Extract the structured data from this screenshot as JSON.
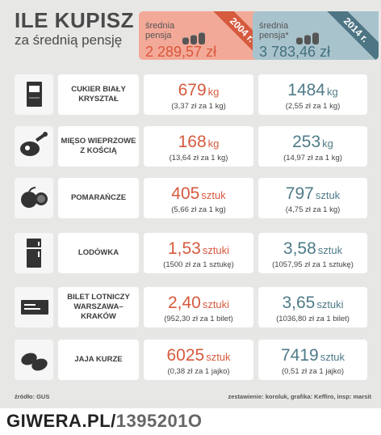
{
  "title": {
    "main": "ILE KUPISZ",
    "sub": "za średnią pensję"
  },
  "colors": {
    "accent_2004": "#d65a3e",
    "accent_2014": "#4f7b89",
    "header_2004": "#f3a998",
    "header_2014": "#a9c3cc"
  },
  "headers": {
    "y2004": {
      "label_line1": "średnia",
      "label_line2": "pensja",
      "amount": "2 289,57 zł",
      "year": "2004 r."
    },
    "y2014": {
      "label_line1": "średnia",
      "label_line2": "pensja*",
      "amount": "3 783,46 zł",
      "year": "2014 r."
    }
  },
  "items": [
    {
      "icon": "sugar-bag-icon",
      "name": "CUKIER BIAŁY KRYSZTAŁ",
      "v2004": {
        "value": "679",
        "unit": "kg",
        "note": "(3,37 zł za 1 kg)"
      },
      "v2014": {
        "value": "1484",
        "unit": "kg",
        "note": "(2,55 zł za 1 kg)"
      }
    },
    {
      "icon": "meat-leg-icon",
      "name": "MIĘSO WIEPRZOWE Z KOŚCIĄ",
      "v2004": {
        "value": "168",
        "unit": "kg",
        "note": "(13,64 zł za 1 kg)"
      },
      "v2014": {
        "value": "253",
        "unit": "kg",
        "note": "(14,97 zł za 1 kg)"
      }
    },
    {
      "icon": "orange-icon",
      "name": "POMARAŃCZE",
      "v2004": {
        "value": "405",
        "unit": "sztuk",
        "note": "(5,66 zł za 1 kg)"
      },
      "v2014": {
        "value": "797",
        "unit": "sztuk",
        "note": "(4,75 zł za 1 kg)"
      }
    },
    {
      "icon": "fridge-icon",
      "name": "LODÓWKA",
      "v2004": {
        "value": "1,53",
        "unit": "sztuki",
        "note": "(1500 zł za 1 sztukę)"
      },
      "v2014": {
        "value": "3,58",
        "unit": "sztuk",
        "note": "(1057,95 zł za 1 sztukę)"
      }
    },
    {
      "icon": "plane-ticket-icon",
      "name": "BILET LOTNICZY WARSZAWA– KRAKÓW",
      "v2004": {
        "value": "2,40",
        "unit": "sztuki",
        "note": "(952,30 zł za 1 bilet)"
      },
      "v2014": {
        "value": "3,65",
        "unit": "sztuki",
        "note": "(1036,80 zł za 1 bilet)"
      }
    },
    {
      "icon": "eggs-icon",
      "name": "JAJA KURZE",
      "v2004": {
        "value": "6025",
        "unit": "sztuk",
        "note": "(0,38 zł za 1 jajko)"
      },
      "v2014": {
        "value": "7419",
        "unit": "sztuk",
        "note": "(0,51 zł za 1 jajko)"
      }
    }
  ],
  "footer": {
    "source": "źródło: GUS",
    "credits": "zestawienie: koroluk, grafika: Keffiro, insp: marsit"
  },
  "watermark": {
    "site": "GIWERA.PL/",
    "id": "1395201O"
  }
}
